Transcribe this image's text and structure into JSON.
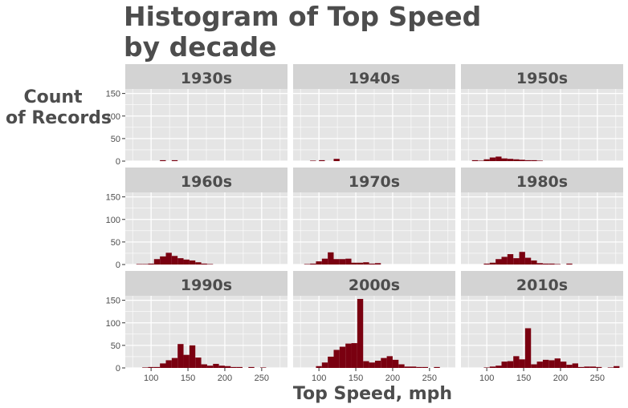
{
  "chart_data": {
    "type": "bar",
    "title_lines": [
      "Histogram of Top Speed",
      "by decade"
    ],
    "xlabel": "Top Speed, mph",
    "ylabel_lines": [
      "Count",
      "of Records"
    ],
    "xlim": [
      65,
      285
    ],
    "ylim": [
      0,
      160
    ],
    "xticks": [
      100,
      150,
      200,
      250
    ],
    "yticks": [
      0,
      50,
      100,
      150
    ],
    "bin_width": 8,
    "colors": {
      "bar": "#7a0010",
      "panel_bg": "#e5e5e5",
      "strip_bg": "#d3d3d3",
      "grid": "#ffffff"
    },
    "facets": [
      {
        "label": "1930s",
        "bins": [
          [
            116,
            2
          ],
          [
            132,
            2
          ]
        ]
      },
      {
        "label": "1940s",
        "bins": [
          [
            92,
            1
          ],
          [
            104,
            2
          ],
          [
            124,
            5
          ]
        ]
      },
      {
        "label": "1950s",
        "bins": [
          [
            84,
            2
          ],
          [
            92,
            1
          ],
          [
            100,
            4
          ],
          [
            108,
            8
          ],
          [
            116,
            10
          ],
          [
            124,
            6
          ],
          [
            132,
            5
          ],
          [
            140,
            4
          ],
          [
            148,
            3
          ],
          [
            156,
            2
          ],
          [
            164,
            2
          ],
          [
            172,
            1
          ]
        ]
      },
      {
        "label": "1960s",
        "bins": [
          [
            84,
            1
          ],
          [
            92,
            1
          ],
          [
            100,
            2
          ],
          [
            108,
            12
          ],
          [
            116,
            18
          ],
          [
            124,
            26
          ],
          [
            132,
            19
          ],
          [
            140,
            14
          ],
          [
            148,
            11
          ],
          [
            156,
            9
          ],
          [
            164,
            5
          ],
          [
            172,
            2
          ],
          [
            180,
            1
          ]
        ]
      },
      {
        "label": "1970s",
        "bins": [
          [
            84,
            1
          ],
          [
            92,
            2
          ],
          [
            100,
            7
          ],
          [
            108,
            13
          ],
          [
            116,
            27
          ],
          [
            124,
            12
          ],
          [
            132,
            12
          ],
          [
            140,
            13
          ],
          [
            148,
            4
          ],
          [
            156,
            4
          ],
          [
            164,
            5
          ],
          [
            172,
            2
          ],
          [
            180,
            3
          ]
        ]
      },
      {
        "label": "1980s",
        "bins": [
          [
            100,
            2
          ],
          [
            108,
            4
          ],
          [
            116,
            12
          ],
          [
            124,
            17
          ],
          [
            132,
            23
          ],
          [
            140,
            14
          ],
          [
            148,
            28
          ],
          [
            156,
            15
          ],
          [
            164,
            9
          ],
          [
            172,
            3
          ],
          [
            180,
            2
          ],
          [
            188,
            2
          ],
          [
            196,
            1
          ],
          [
            212,
            2
          ]
        ]
      },
      {
        "label": "1990s",
        "bins": [
          [
            92,
            1
          ],
          [
            100,
            2
          ],
          [
            108,
            2
          ],
          [
            116,
            10
          ],
          [
            124,
            17
          ],
          [
            132,
            22
          ],
          [
            140,
            53
          ],
          [
            148,
            29
          ],
          [
            156,
            50
          ],
          [
            164,
            23
          ],
          [
            172,
            8
          ],
          [
            180,
            5
          ],
          [
            188,
            9
          ],
          [
            196,
            5
          ],
          [
            204,
            4
          ],
          [
            212,
            2
          ],
          [
            220,
            2
          ],
          [
            236,
            2
          ],
          [
            252,
            1
          ]
        ]
      },
      {
        "label": "2000s",
        "bins": [
          [
            100,
            4
          ],
          [
            108,
            12
          ],
          [
            116,
            25
          ],
          [
            124,
            40
          ],
          [
            132,
            47
          ],
          [
            140,
            54
          ],
          [
            148,
            55
          ],
          [
            156,
            153
          ],
          [
            164,
            15
          ],
          [
            172,
            12
          ],
          [
            180,
            16
          ],
          [
            188,
            22
          ],
          [
            196,
            26
          ],
          [
            204,
            18
          ],
          [
            212,
            8
          ],
          [
            220,
            3
          ],
          [
            228,
            3
          ],
          [
            236,
            2
          ],
          [
            244,
            2
          ],
          [
            260,
            2
          ]
        ]
      },
      {
        "label": "2010s",
        "bins": [
          [
            100,
            1
          ],
          [
            108,
            3
          ],
          [
            116,
            5
          ],
          [
            124,
            14
          ],
          [
            132,
            15
          ],
          [
            140,
            26
          ],
          [
            148,
            19
          ],
          [
            156,
            88
          ],
          [
            164,
            8
          ],
          [
            172,
            14
          ],
          [
            180,
            18
          ],
          [
            188,
            17
          ],
          [
            196,
            21
          ],
          [
            204,
            14
          ],
          [
            212,
            7
          ],
          [
            220,
            10
          ],
          [
            228,
            2
          ],
          [
            236,
            3
          ],
          [
            244,
            3
          ],
          [
            252,
            2
          ],
          [
            268,
            1
          ],
          [
            276,
            4
          ]
        ]
      }
    ]
  }
}
